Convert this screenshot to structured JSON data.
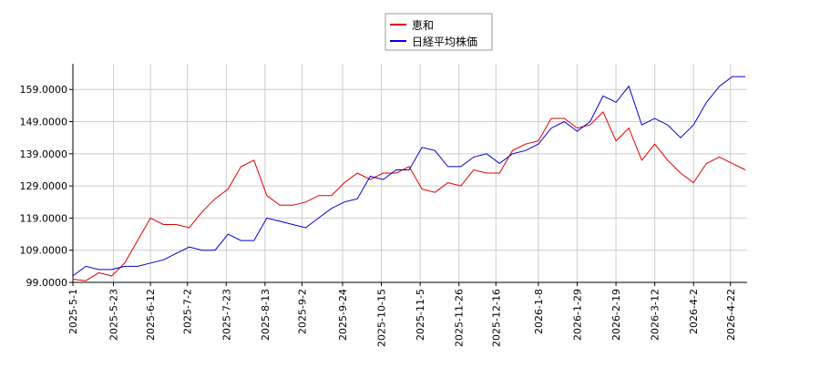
{
  "chart_data": {
    "type": "line",
    "x": [
      "2025-5-1",
      "2025-5-8",
      "2025-5-15",
      "2025-5-22",
      "2025-5-29",
      "2025-6-5",
      "2025-6-12",
      "2025-6-19",
      "2025-6-26",
      "2025-7-3",
      "2025-7-10",
      "2025-7-17",
      "2025-7-24",
      "2025-7-31",
      "2025-8-7",
      "2025-8-14",
      "2025-8-21",
      "2025-8-28",
      "2025-9-4",
      "2025-9-11",
      "2025-9-18",
      "2025-9-25",
      "2025-10-2",
      "2025-10-9",
      "2025-10-16",
      "2025-10-23",
      "2025-10-30",
      "2025-11-6",
      "2025-11-13",
      "2025-11-20",
      "2025-11-27",
      "2025-12-4",
      "2025-12-11",
      "2025-12-18",
      "2025-12-25",
      "2026-1-1",
      "2026-1-8",
      "2026-1-15",
      "2026-1-22",
      "2026-1-29",
      "2026-2-5",
      "2026-2-12",
      "2026-2-19",
      "2026-2-26",
      "2026-3-5",
      "2026-3-12",
      "2026-3-19",
      "2026-3-26",
      "2026-4-2",
      "2026-4-9",
      "2026-4-16",
      "2026-4-23",
      "2026-4-30"
    ],
    "series": [
      {
        "name": "恵和",
        "color": "#dd0000",
        "values": [
          100,
          99.5,
          102,
          101,
          105,
          112,
          119,
          117,
          117,
          116,
          121,
          125,
          128,
          135,
          137,
          126,
          123,
          123,
          124,
          126,
          126,
          130,
          133,
          131,
          133,
          133,
          135,
          128,
          127,
          130,
          129,
          134,
          133,
          133,
          140,
          142,
          143,
          150,
          150,
          147,
          148,
          152,
          143,
          147,
          137,
          142,
          137,
          133,
          130,
          136,
          138,
          136,
          134
        ]
      },
      {
        "name": "日経平均株価",
        "color": "#0000cc",
        "values": [
          101,
          104,
          103,
          103,
          104,
          104,
          105,
          106,
          108,
          110,
          109,
          109,
          114,
          112,
          112,
          119,
          118,
          117,
          116,
          119,
          122,
          124,
          125,
          132,
          131,
          134,
          134,
          141,
          140,
          135,
          135,
          138,
          139,
          136,
          139,
          140,
          142,
          147,
          149,
          146,
          149,
          157,
          155,
          160,
          148,
          150,
          148,
          144,
          148,
          155,
          160,
          163,
          163
        ]
      }
    ],
    "xlim": [
      "2025-5-1",
      "2026-5-1"
    ],
    "xticks": [
      "2025-5-1",
      "2025-5-23",
      "2025-6-12",
      "2025-7-2",
      "2025-7-23",
      "2025-8-13",
      "2025-9-2",
      "2025-9-24",
      "2025-10-15",
      "2025-11-5",
      "2025-11-26",
      "2025-12-16",
      "2026-1-8",
      "2026-1-29",
      "2026-2-19",
      "2026-3-12",
      "2026-4-2",
      "2026-4-22"
    ],
    "ylim": [
      99,
      167
    ],
    "yticks": [
      {
        "value": 99,
        "label": "99.0000"
      },
      {
        "value": 109,
        "label": "109.0000"
      },
      {
        "value": 119,
        "label": "119.0000"
      },
      {
        "value": 129,
        "label": "129.0000"
      },
      {
        "value": 139,
        "label": "139.0000"
      },
      {
        "value": 149,
        "label": "149.0000"
      },
      {
        "value": 159,
        "label": "159.0000"
      }
    ],
    "grid": true
  }
}
